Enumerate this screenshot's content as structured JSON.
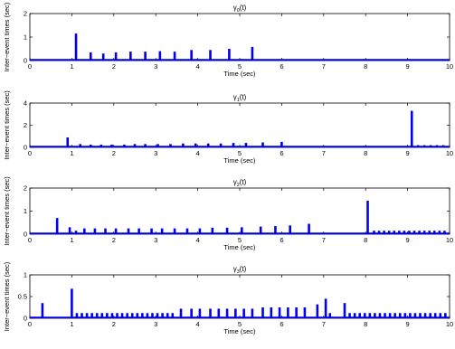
{
  "chart_data": [
    {
      "type": "bar",
      "title": "γ₀(t)",
      "title_base": "γ",
      "title_sub": "0",
      "title_suffix": "(t)",
      "xlabel": "Time (sec)",
      "ylabel": "Inter−event times (sec)",
      "xlim": [
        0,
        10
      ],
      "ylim": [
        0,
        2
      ],
      "xticks": [
        "0",
        "1",
        "2",
        "3",
        "4",
        "5",
        "6",
        "7",
        "8",
        "9",
        "10"
      ],
      "yticks": [
        "0",
        "1",
        "2"
      ],
      "grid": false,
      "color": "#0000ee",
      "x": [
        1.1,
        1.45,
        1.75,
        2.05,
        2.4,
        2.75,
        3.1,
        3.45,
        3.85,
        4.3,
        4.75,
        5.3
      ],
      "values": [
        1.15,
        0.35,
        0.3,
        0.35,
        0.38,
        0.38,
        0.4,
        0.38,
        0.45,
        0.45,
        0.5,
        0.58
      ]
    },
    {
      "type": "bar",
      "title": "γ₁(t)",
      "title_base": "γ",
      "title_sub": "1",
      "title_suffix": "(t)",
      "xlabel": "Time (sec)",
      "ylabel": "Inter−event times (sec)",
      "xlim": [
        0,
        10
      ],
      "ylim": [
        0,
        4
      ],
      "xticks": [
        "0",
        "1",
        "2",
        "3",
        "4",
        "5",
        "6",
        "7",
        "8",
        "9",
        "10"
      ],
      "yticks": [
        "0",
        "2",
        "4"
      ],
      "grid": false,
      "color": "#0000ee",
      "x": [
        0.9,
        1.2,
        1.45,
        1.7,
        1.95,
        2.25,
        2.5,
        2.75,
        3.05,
        3.35,
        3.65,
        3.95,
        4.25,
        4.55,
        4.85,
        5.15,
        5.55,
        6.0,
        9.1,
        9.25,
        9.4,
        9.55,
        9.7,
        9.85
      ],
      "values": [
        0.9,
        0.3,
        0.25,
        0.25,
        0.25,
        0.25,
        0.3,
        0.3,
        0.3,
        0.3,
        0.35,
        0.35,
        0.35,
        0.35,
        0.4,
        0.4,
        0.45,
        0.5,
        3.3,
        0.2,
        0.2,
        0.2,
        0.2,
        0.2
      ]
    },
    {
      "type": "bar",
      "title": "γ₂(t)",
      "title_base": "γ",
      "title_sub": "2",
      "title_suffix": "(t)",
      "xlabel": "Time (sec)",
      "ylabel": "Inter−event times (sec)",
      "xlim": [
        0,
        10
      ],
      "ylim": [
        0,
        2
      ],
      "xticks": [
        "0",
        "1",
        "2",
        "3",
        "4",
        "5",
        "6",
        "7",
        "8",
        "9",
        "10"
      ],
      "yticks": [
        "0",
        "1",
        "2"
      ],
      "grid": false,
      "color": "#0000ee",
      "x": [
        0.65,
        0.95,
        1.1,
        1.3,
        1.55,
        1.8,
        2.05,
        2.35,
        2.6,
        2.9,
        3.15,
        3.45,
        3.75,
        4.05,
        4.35,
        4.7,
        5.05,
        5.5,
        5.85,
        6.2,
        6.65,
        8.05,
        8.2,
        8.32,
        8.44,
        8.56,
        8.68,
        8.8,
        8.92,
        9.04,
        9.16,
        9.28,
        9.4,
        9.52,
        9.64,
        9.76,
        9.88
      ],
      "values": [
        0.7,
        0.3,
        0.15,
        0.25,
        0.25,
        0.25,
        0.25,
        0.25,
        0.25,
        0.25,
        0.25,
        0.25,
        0.25,
        0.25,
        0.28,
        0.28,
        0.3,
        0.33,
        0.35,
        0.38,
        0.45,
        1.45,
        0.15,
        0.15,
        0.15,
        0.15,
        0.15,
        0.15,
        0.15,
        0.15,
        0.15,
        0.15,
        0.15,
        0.15,
        0.15,
        0.15,
        0.15
      ]
    },
    {
      "type": "bar",
      "title": "γ₃(t)",
      "title_base": "γ",
      "title_sub": "3",
      "title_suffix": "(t)",
      "xlabel": "Time (sec)",
      "ylabel": "Inter−event times (sec)",
      "xlim": [
        0,
        10
      ],
      "ylim": [
        0,
        1
      ],
      "xticks": [
        "0",
        "1",
        "2",
        "3",
        "4",
        "5",
        "6",
        "7",
        "8",
        "9",
        "10"
      ],
      "yticks": [
        "0",
        "0.5",
        "1"
      ],
      "grid": false,
      "color": "#0000ee",
      "x": [
        0.3,
        1.0,
        1.12,
        1.24,
        1.36,
        1.48,
        1.6,
        1.72,
        1.84,
        1.96,
        2.08,
        2.2,
        2.32,
        2.44,
        2.56,
        2.68,
        2.8,
        2.92,
        3.04,
        3.16,
        3.28,
        3.4,
        3.6,
        3.85,
        4.05,
        4.3,
        4.5,
        4.7,
        4.9,
        5.1,
        5.3,
        5.55,
        5.75,
        5.95,
        6.15,
        6.35,
        6.55,
        6.85,
        7.05,
        7.15,
        7.5,
        7.62,
        7.74,
        7.86,
        7.98,
        8.1,
        8.22,
        8.34,
        8.46,
        8.58,
        8.7,
        8.82,
        8.94,
        9.06,
        9.18,
        9.3,
        9.42,
        9.54,
        9.66,
        9.78,
        9.9
      ],
      "values": [
        0.35,
        0.68,
        0.12,
        0.12,
        0.12,
        0.12,
        0.12,
        0.12,
        0.12,
        0.12,
        0.12,
        0.12,
        0.12,
        0.12,
        0.12,
        0.12,
        0.12,
        0.12,
        0.12,
        0.12,
        0.12,
        0.12,
        0.22,
        0.22,
        0.22,
        0.22,
        0.22,
        0.22,
        0.22,
        0.22,
        0.22,
        0.25,
        0.25,
        0.25,
        0.25,
        0.25,
        0.25,
        0.32,
        0.45,
        0.12,
        0.35,
        0.12,
        0.12,
        0.12,
        0.12,
        0.12,
        0.12,
        0.12,
        0.12,
        0.12,
        0.12,
        0.12,
        0.12,
        0.12,
        0.12,
        0.12,
        0.12,
        0.12,
        0.12,
        0.12,
        0.12
      ]
    }
  ]
}
